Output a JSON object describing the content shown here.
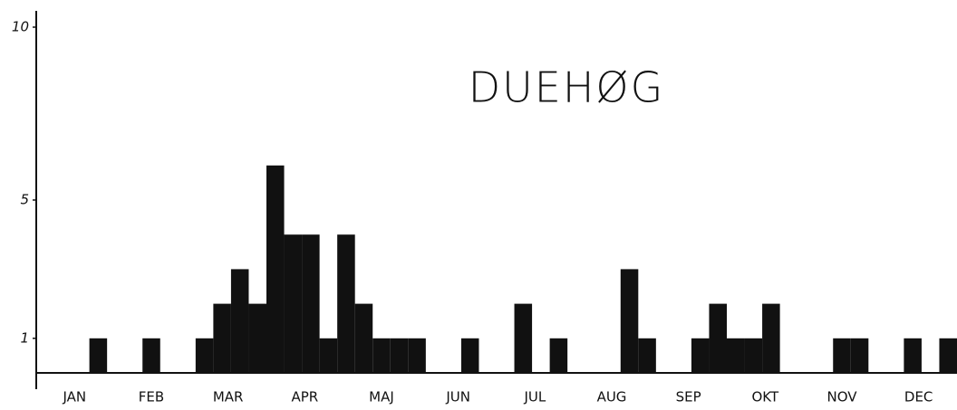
{
  "chart_data": {
    "type": "bar",
    "title": "DUEHØG",
    "categories": [
      null,
      null,
      null,
      null,
      null,
      null,
      null,
      null,
      null,
      null,
      null,
      null,
      null,
      null,
      null,
      null,
      null,
      null,
      null,
      null,
      null,
      null,
      null,
      null,
      null,
      null,
      null,
      null,
      null,
      null,
      null,
      null,
      null,
      null,
      null,
      null,
      null,
      null,
      null,
      null,
      null,
      null,
      null,
      null,
      null,
      null,
      null,
      null,
      null,
      null,
      null,
      null
    ],
    "values": [
      0,
      0,
      0,
      1,
      0,
      0,
      1,
      0,
      0,
      1,
      2,
      3,
      2,
      6,
      4,
      4,
      1,
      4,
      2,
      1,
      1,
      1,
      0,
      0,
      1,
      0,
      0,
      2,
      0,
      1,
      0,
      0,
      0,
      3,
      1,
      0,
      0,
      1,
      2,
      1,
      1,
      2,
      0,
      0,
      0,
      1,
      1,
      0,
      0,
      1,
      0,
      1
    ],
    "month_labels": [
      "JAN",
      "FEB",
      "MAR",
      "APR",
      "MAJ",
      "JUN",
      "JUL",
      "AUG",
      "SEP",
      "OKT",
      "NOV",
      "DEC"
    ],
    "color": "#111111",
    "ylim": [
      0,
      10
    ],
    "yticks": [
      1,
      5,
      10
    ]
  }
}
